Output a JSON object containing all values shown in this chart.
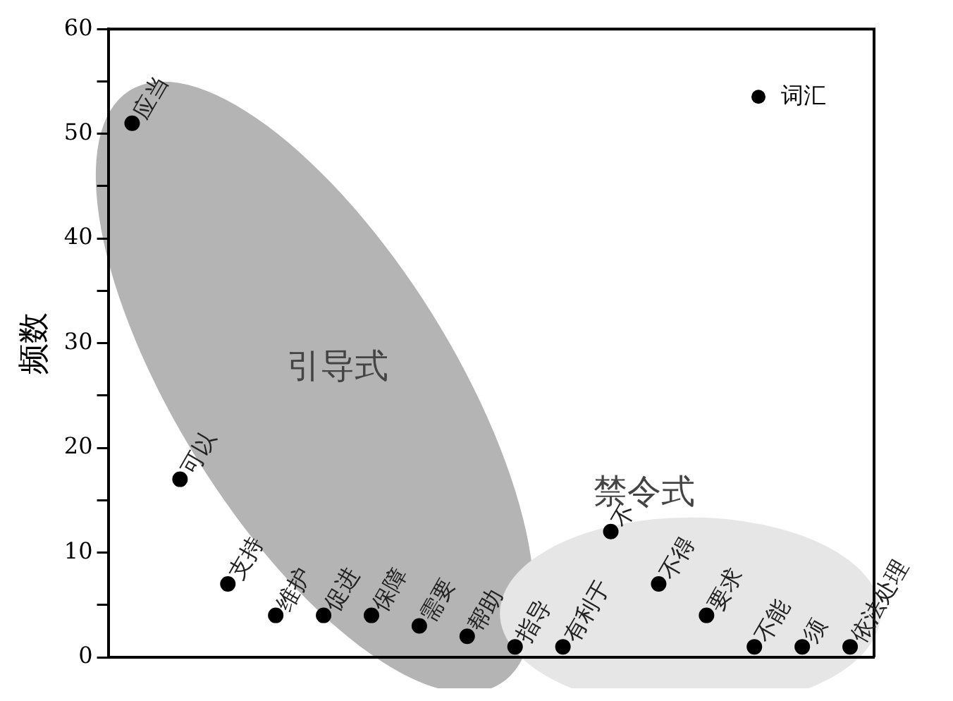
{
  "chart_data": {
    "type": "scatter",
    "ylabel": "频数",
    "categories": [
      null,
      null,
      null,
      null,
      null,
      null,
      null,
      null,
      null,
      null,
      null,
      null,
      null,
      null,
      null,
      null
    ],
    "series": [
      {
        "name": "词汇",
        "color": "#000000",
        "values": [
          51,
          17,
          7,
          4,
          4,
          4,
          3,
          2,
          1,
          1,
          12,
          7,
          4,
          1,
          1,
          1
        ],
        "value_labels": [
          "应当",
          "可以",
          "支持",
          "维护",
          "促进",
          "保障",
          "需要",
          "帮助",
          "指导",
          "有利于",
          "不",
          "不得",
          "要求",
          "不能",
          "须",
          "依法处理"
        ]
      }
    ],
    "ylim": [
      0,
      60
    ],
    "yticks": [
      0,
      {
        "value": 5,
        "label": null
      },
      10,
      {
        "value": 15,
        "label": null
      },
      20,
      {
        "value": 25,
        "label": null
      },
      30,
      {
        "value": 35,
        "label": null
      },
      40,
      {
        "value": 45,
        "label": null
      },
      50,
      {
        "value": 55,
        "label": null
      },
      60
    ],
    "annotations": [
      "引导式",
      "禁令式"
    ],
    "tick_labels": "y",
    "grid": false,
    "legend": "top right",
    "marker": "circle"
  }
}
